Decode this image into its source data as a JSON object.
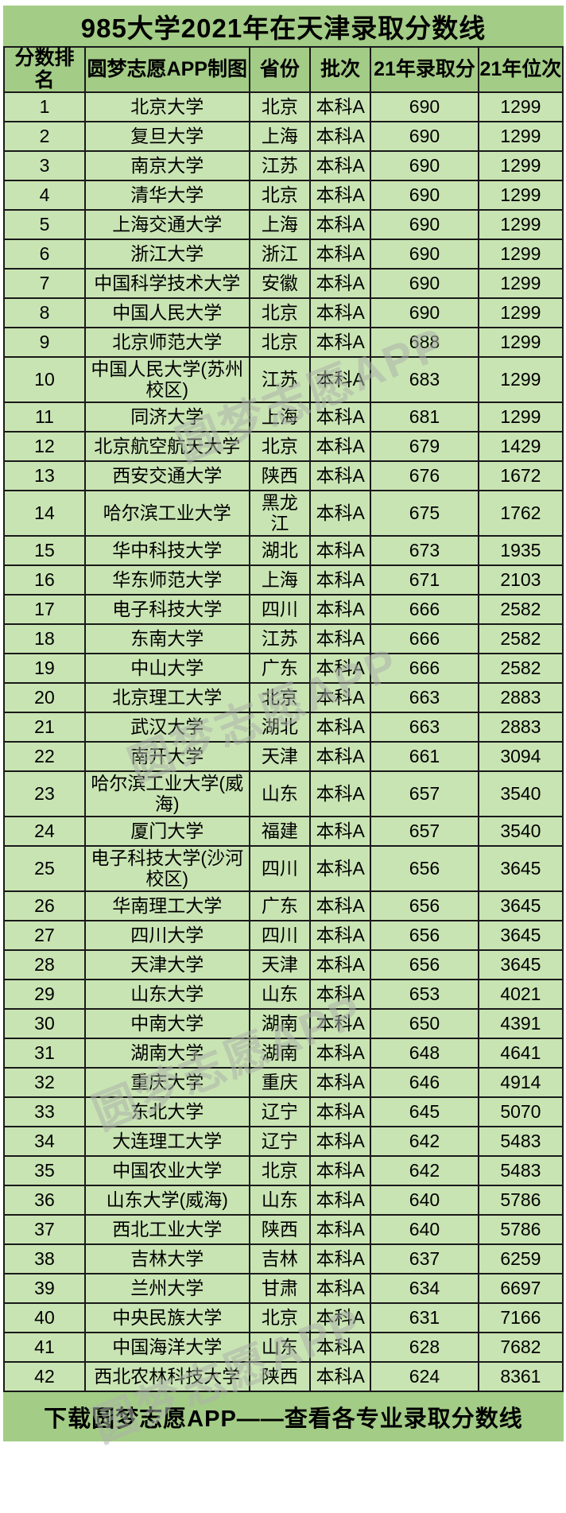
{
  "title": "985大学2021年在天津录取分数线",
  "footer": {
    "text": "下载圆梦志愿APP——查看各专业录取分数线"
  },
  "watermark": {
    "text": "圆梦志愿APP"
  },
  "colors": {
    "band_green": "#A3CC86",
    "row_green": "#C9E4B3",
    "border": "#1A1A1A",
    "text": "#000000",
    "watermark": "rgba(172,178,168,0.55)"
  },
  "chart_data": {
    "type": "table",
    "title": "985大学2021年在天津录取分数线",
    "columns": [
      "分数排名",
      "圆梦志愿APP制图",
      "省份",
      "批次",
      "21年录取分",
      "21年位次"
    ],
    "rows": [
      [
        1,
        "北京大学",
        "北京",
        "本科A",
        690,
        1299
      ],
      [
        2,
        "复旦大学",
        "上海",
        "本科A",
        690,
        1299
      ],
      [
        3,
        "南京大学",
        "江苏",
        "本科A",
        690,
        1299
      ],
      [
        4,
        "清华大学",
        "北京",
        "本科A",
        690,
        1299
      ],
      [
        5,
        "上海交通大学",
        "上海",
        "本科A",
        690,
        1299
      ],
      [
        6,
        "浙江大学",
        "浙江",
        "本科A",
        690,
        1299
      ],
      [
        7,
        "中国科学技术大学",
        "安徽",
        "本科A",
        690,
        1299
      ],
      [
        8,
        "中国人民大学",
        "北京",
        "本科A",
        690,
        1299
      ],
      [
        9,
        "北京师范大学",
        "北京",
        "本科A",
        688,
        1299
      ],
      [
        10,
        "中国人民大学(苏州校区)",
        "江苏",
        "本科A",
        683,
        1299
      ],
      [
        11,
        "同济大学",
        "上海",
        "本科A",
        681,
        1299
      ],
      [
        12,
        "北京航空航天大学",
        "北京",
        "本科A",
        679,
        1429
      ],
      [
        13,
        "西安交通大学",
        "陕西",
        "本科A",
        676,
        1672
      ],
      [
        14,
        "哈尔滨工业大学",
        "黑龙江",
        "本科A",
        675,
        1762
      ],
      [
        15,
        "华中科技大学",
        "湖北",
        "本科A",
        673,
        1935
      ],
      [
        16,
        "华东师范大学",
        "上海",
        "本科A",
        671,
        2103
      ],
      [
        17,
        "电子科技大学",
        "四川",
        "本科A",
        666,
        2582
      ],
      [
        18,
        "东南大学",
        "江苏",
        "本科A",
        666,
        2582
      ],
      [
        19,
        "中山大学",
        "广东",
        "本科A",
        666,
        2582
      ],
      [
        20,
        "北京理工大学",
        "北京",
        "本科A",
        663,
        2883
      ],
      [
        21,
        "武汉大学",
        "湖北",
        "本科A",
        663,
        2883
      ],
      [
        22,
        "南开大学",
        "天津",
        "本科A",
        661,
        3094
      ],
      [
        23,
        "哈尔滨工业大学(威海)",
        "山东",
        "本科A",
        657,
        3540
      ],
      [
        24,
        "厦门大学",
        "福建",
        "本科A",
        657,
        3540
      ],
      [
        25,
        "电子科技大学(沙河校区)",
        "四川",
        "本科A",
        656,
        3645
      ],
      [
        26,
        "华南理工大学",
        "广东",
        "本科A",
        656,
        3645
      ],
      [
        27,
        "四川大学",
        "四川",
        "本科A",
        656,
        3645
      ],
      [
        28,
        "天津大学",
        "天津",
        "本科A",
        656,
        3645
      ],
      [
        29,
        "山东大学",
        "山东",
        "本科A",
        653,
        4021
      ],
      [
        30,
        "中南大学",
        "湖南",
        "本科A",
        650,
        4391
      ],
      [
        31,
        "湖南大学",
        "湖南",
        "本科A",
        648,
        4641
      ],
      [
        32,
        "重庆大学",
        "重庆",
        "本科A",
        646,
        4914
      ],
      [
        33,
        "东北大学",
        "辽宁",
        "本科A",
        645,
        5070
      ],
      [
        34,
        "大连理工大学",
        "辽宁",
        "本科A",
        642,
        5483
      ],
      [
        35,
        "中国农业大学",
        "北京",
        "本科A",
        642,
        5483
      ],
      [
        36,
        "山东大学(威海)",
        "山东",
        "本科A",
        640,
        5786
      ],
      [
        37,
        "西北工业大学",
        "陕西",
        "本科A",
        640,
        5786
      ],
      [
        38,
        "吉林大学",
        "吉林",
        "本科A",
        637,
        6259
      ],
      [
        39,
        "兰州大学",
        "甘肃",
        "本科A",
        634,
        6697
      ],
      [
        40,
        "中央民族大学",
        "北京",
        "本科A",
        631,
        7166
      ],
      [
        41,
        "中国海洋大学",
        "山东",
        "本科A",
        628,
        7682
      ],
      [
        42,
        "西北农林科技大学",
        "陕西",
        "本科A",
        624,
        8361
      ]
    ]
  }
}
